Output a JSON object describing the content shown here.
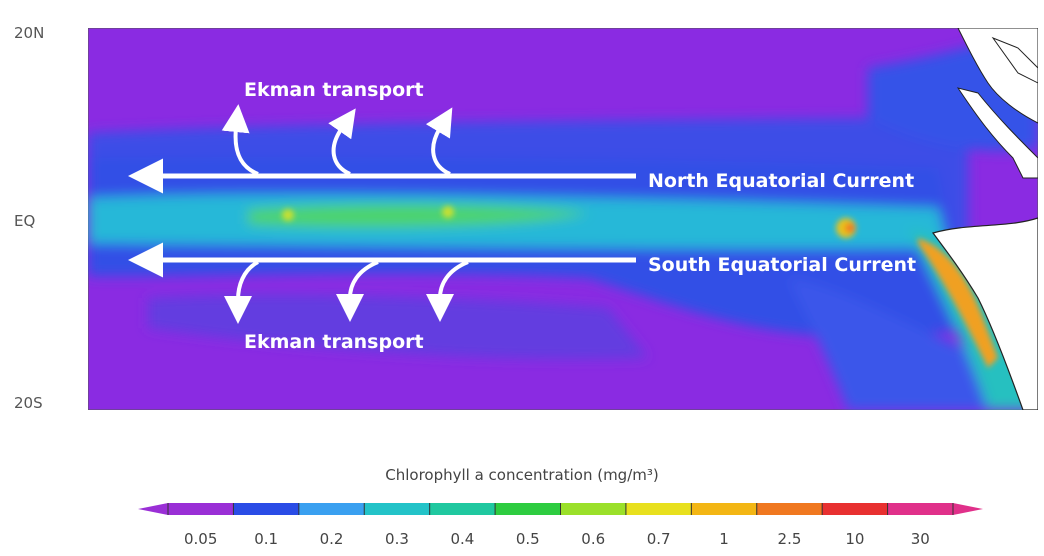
{
  "axis": {
    "north": "20N",
    "equator": "EQ",
    "south": "20S"
  },
  "annotations": {
    "ekman_north": "Ekman transport",
    "ekman_south": "Ekman transport",
    "north_current": "North Equatorial Current",
    "south_current": "South Equatorial Current"
  },
  "legend": {
    "title": "Chlorophyll a concentration (mg/m³)",
    "ticks": [
      "0.05",
      "0.1",
      "0.2",
      "0.3",
      "0.4",
      "0.5",
      "0.6",
      "0.7",
      "1",
      "2.5",
      "10",
      "30"
    ],
    "colors": [
      "#9a2fd6",
      "#2a4ce6",
      "#3aa0f0",
      "#23c3c8",
      "#20c8a0",
      "#2ecc40",
      "#9be02a",
      "#e8e01e",
      "#f3b614",
      "#f07820",
      "#e83030",
      "#e0308a"
    ]
  },
  "map_colors": {
    "ocean_oligotrophic": "#8a2be2",
    "ocean_low": "#3050e6",
    "ocean_mid": "#25b8d8",
    "ocean_high": "#3ad060",
    "upwelling": "#f0a020",
    "land": "#ffffff",
    "coastline": "#222222"
  }
}
